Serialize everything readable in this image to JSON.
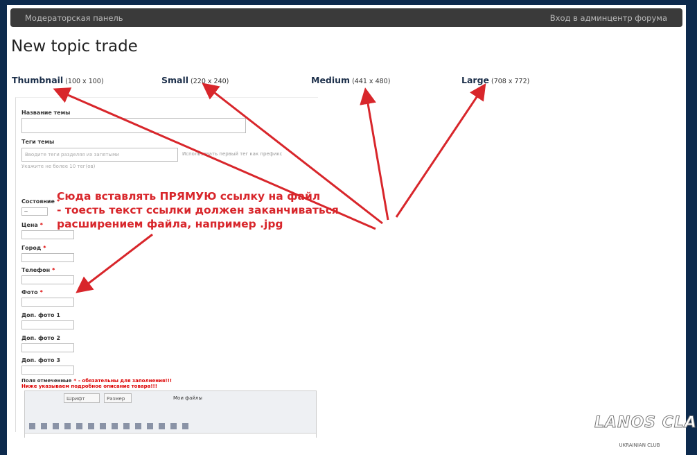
{
  "navbar": {
    "left": "Модераторская панель",
    "right": "Вход в админцентр форума"
  },
  "page_title": "New topic trade",
  "sizes": [
    {
      "name": "Thumbnail",
      "dims": "(100 x 100)"
    },
    {
      "name": "Small",
      "dims": "(220 x 240)"
    },
    {
      "name": "Medium",
      "dims": "(441 x 480)"
    },
    {
      "name": "Large",
      "dims": "(708 x 772)"
    }
  ],
  "form": {
    "required_mark": "*",
    "title_label": "Название темы",
    "tags_label": "Теги темы",
    "tags_placeholder": "Вводите теги разделяя их запятыми",
    "tags_prefix": "Использовать первый тег как префикс",
    "tags_hint": "Укажите не более 10 тег(ов)",
    "state_label": "Состояние",
    "state_value": "--",
    "fields": [
      {
        "label": "Цена",
        "required": true
      },
      {
        "label": "Город",
        "required": true
      },
      {
        "label": "Телефон",
        "required": true
      },
      {
        "label": "Фото",
        "required": true
      },
      {
        "label": "Доп. фото 1",
        "required": false
      },
      {
        "label": "Доп. фото 2",
        "required": false
      },
      {
        "label": "Доп. фото 3",
        "required": false
      }
    ],
    "note_prefix": "Поля отмеченные",
    "note_suffix": "- обязательны для заполнения!!!",
    "note_2": "Ниже указываем подробное описание товара!!!",
    "editor": {
      "font": "Шрифт",
      "size": "Размер",
      "files": "Мои файлы"
    }
  },
  "annotation": [
    "Сюда вставлять ПРЯМУЮ ссылку на файл",
    "- тоесть текст ссылки должен заканчиваться",
    "расширением файла, например .jpg"
  ],
  "watermark": {
    "logo": "LANOS CLAN",
    "sub": "UKRAINIAN CLUB"
  }
}
